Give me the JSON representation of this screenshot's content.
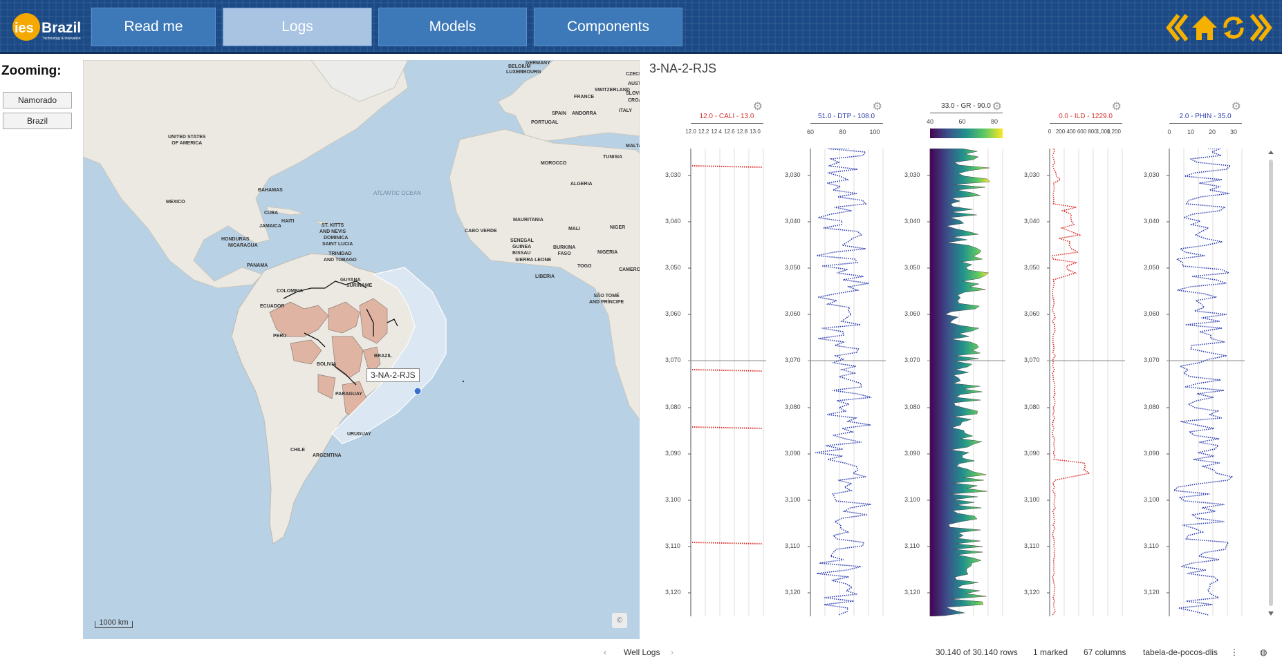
{
  "header": {
    "brand": "ies Brazil",
    "brand_sub": "Technology & Innovation",
    "tabs": [
      {
        "label": "Read me",
        "active": false
      },
      {
        "label": "Logs",
        "active": true
      },
      {
        "label": "Models",
        "active": false
      },
      {
        "label": "Components",
        "active": false
      }
    ],
    "icons": [
      "double-chevron-left-icon",
      "home-icon",
      "refresh-icon",
      "double-chevron-right-icon"
    ],
    "accent_color": "#f5b000"
  },
  "zooming": {
    "label": "Zooming:",
    "buttons": [
      "Namorado",
      "Brazil"
    ]
  },
  "map": {
    "labels": {
      "belgium": "BELGIUM",
      "germany": "GERMANY",
      "luxembourg": "LUXEMBOURG",
      "czech": "CZECH",
      "austria": "AUSTR",
      "switzerland": "SWITZERLAND",
      "slovenia": "SLOVEN",
      "croatia": "CROA",
      "france": "FRANCE",
      "italy": "ITALY",
      "spain": "SPAIN",
      "andorra": "ANDORRA",
      "portugal": "PORTUGAL",
      "malta": "MALTA",
      "tunisia": "TUNISIA",
      "morocco": "MOROCCO",
      "algeria": "ALGERIA",
      "usa": "UNITED STATES\nOF AMERICA",
      "bahamas": "BAHAMAS",
      "mexico": "MEXICO",
      "cuba": "CUBA",
      "haiti": "HAITI",
      "jamaica": "JAMAICA",
      "stkitts": "ST. KITTS\nAND NEVIS",
      "dominica": "DOMINICA",
      "stlucia": "SAINT LUCIA",
      "trinidad": "TRINIDAD\nAND TOBAGO",
      "honduras": "HONDURAS",
      "nicaragua": "NICARAGUA",
      "panama": "PANAMA",
      "atlantic": "ATLANTIC OCEAN",
      "caboverde": "CABO VERDE",
      "mauritania": "MAURITANIA",
      "mali": "MALI",
      "niger": "NIGER",
      "senegal": "SENEGAL",
      "guinea": "GUINEA",
      "guineabissau": "BISSAU",
      "burkina": "BURKINA\nFASO",
      "sierra": "SIERRA LEONE",
      "nigeria": "NIGERIA",
      "togo": "TOGO",
      "cameroon": "CAMEROO",
      "liberia": "LIBERIA",
      "saotome": "SÃO TOMÉ\nAND PRÍNCIPE",
      "guyana": "GUYANA",
      "suriname": "SURINAME",
      "colombia": "COLOMBIA",
      "ecuador": "ECUADOR",
      "peru": "PERU",
      "brazil": "BRAZIL",
      "bolivia": "BOLIVIA",
      "paraguay": "PARAGUAY",
      "chile": "CHILE",
      "argentina": "ARGENTINA",
      "uruguay": "URUGUAY"
    },
    "popup": "3-NA-2-RJS",
    "scale": "1000 km",
    "attribution_icon": "info-icon"
  },
  "logs": {
    "well_title": "3-NA-2-RJS",
    "depth_labels": [
      "3,030",
      "3,040",
      "3,050",
      "3,060",
      "3,070",
      "3,080",
      "3,090",
      "3,100",
      "3,110",
      "3,120"
    ],
    "tracks": [
      {
        "title": "12.0 - CALI - 13.0",
        "color": "#d9302c",
        "ticks": [
          "12.0",
          "12.2",
          "12.4",
          "12.6",
          "12.8",
          "13.0"
        ]
      },
      {
        "title": "51.0 - DTP - 108.0",
        "color": "#2f3fb0",
        "ticks": [
          "60",
          "80",
          "100"
        ]
      },
      {
        "title": "33.0 - GR - 90.0",
        "color": "#333333",
        "ticks": [
          "40",
          "60",
          "80"
        ]
      },
      {
        "title": "0.0 - ILD - 1229.0",
        "color": "#d9302c",
        "ticks": [
          "0",
          "200",
          "400",
          "600",
          "800",
          "1,000",
          "1,200"
        ]
      },
      {
        "title": "2.0 - PHIN - 35.0",
        "color": "#2f3fb0",
        "ticks": [
          "0",
          "10",
          "20",
          "30"
        ]
      }
    ]
  },
  "footer": {
    "page_label": "Well Logs",
    "rows": "30.140 of 30.140 rows",
    "marked": "1 marked",
    "columns": "67 columns",
    "table": "tabela-de-pocos-dlis"
  }
}
